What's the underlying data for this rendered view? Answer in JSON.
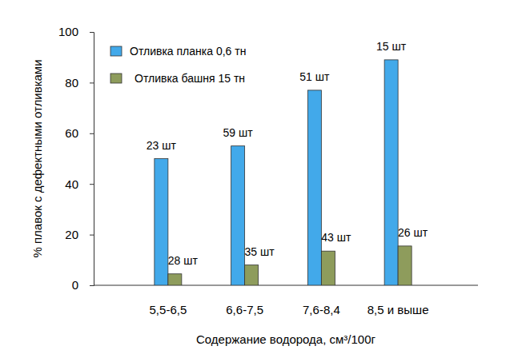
{
  "chart_data": {
    "type": "bar",
    "x_label": "Содержание водорода, см³/100г",
    "y_label": "% плавок с дефектными отливками",
    "categories": [
      "5,5-6,5",
      "6,6-7,5",
      "7,6-8,4",
      "8,5 и выше"
    ],
    "series": [
      {
        "name": "Отливка планка 0,6 тн",
        "color": "#42a9ea",
        "values": [
          50,
          55,
          77,
          89
        ],
        "count_labels": [
          "23 шт",
          "59 шт",
          "51 шт",
          "15 шт"
        ]
      },
      {
        "name": "Отливка башня 15 тн",
        "color": "#8e9c5c",
        "values": [
          4.5,
          8,
          13.5,
          15.5
        ],
        "count_labels": [
          "28 шт",
          "35 шт",
          "43 шт",
          "26 шт"
        ]
      }
    ],
    "ylim": [
      0,
      100
    ],
    "yticks": [
      0,
      20,
      40,
      60,
      80,
      100
    ],
    "grid": false,
    "legend": "top-left"
  }
}
